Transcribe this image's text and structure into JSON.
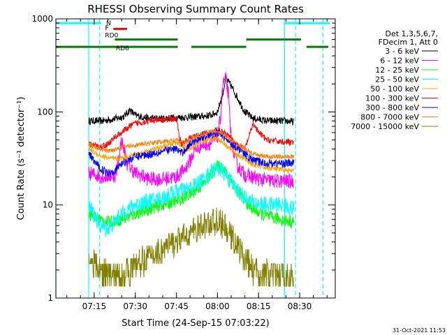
{
  "chart_data": {
    "type": "line",
    "title": "RHESSI Observing Summary Count Rates",
    "xlabel": "Start Time (24-Sep-15 07:03:22)",
    "ylabel": "Count Rate (s⁻¹ detector⁻¹)",
    "yscale": "log",
    "ylim": [
      1,
      1000
    ],
    "xlim_minutes": [
      -2,
      100
    ],
    "x_ticks": [
      {
        "minute": 12,
        "label": "07:15"
      },
      {
        "minute": 27,
        "label": "07:30"
      },
      {
        "minute": 42,
        "label": "07:45"
      },
      {
        "minute": 57,
        "label": "08:00"
      },
      {
        "minute": 72,
        "label": "08:15"
      },
      {
        "minute": 87,
        "label": "08:30"
      }
    ],
    "y_ticks": [
      {
        "value": 1,
        "label": "1"
      },
      {
        "value": 10,
        "label": "10"
      },
      {
        "value": 100,
        "label": "100"
      },
      {
        "value": 1000,
        "label": "1000"
      }
    ],
    "legend_header": [
      "Det 1,3,5,6,7,",
      "FDecim 1, Att 0"
    ],
    "series": [
      {
        "name": "3 - 6 keV",
        "color": "#000000",
        "points": [
          [
            10,
            80
          ],
          [
            15,
            80
          ],
          [
            20,
            85
          ],
          [
            23,
            90
          ],
          [
            25,
            105
          ],
          [
            27,
            92
          ],
          [
            32,
            85
          ],
          [
            37,
            85
          ],
          [
            42,
            87
          ],
          [
            47,
            88
          ],
          [
            52,
            90
          ],
          [
            55,
            93
          ],
          [
            57,
            100
          ],
          [
            59,
            160
          ],
          [
            60,
            230
          ],
          [
            62,
            190
          ],
          [
            65,
            130
          ],
          [
            67,
            100
          ],
          [
            70,
            85
          ],
          [
            75,
            80
          ],
          [
            82,
            80
          ],
          [
            85,
            78
          ]
        ]
      },
      {
        "name": "6 - 12 keV",
        "color": "#ff00ff",
        "points": [
          [
            10,
            22
          ],
          [
            15,
            20
          ],
          [
            20,
            21
          ],
          [
            22,
            50
          ],
          [
            24,
            28
          ],
          [
            27,
            22
          ],
          [
            32,
            19
          ],
          [
            37,
            19
          ],
          [
            42,
            20
          ],
          [
            45,
            24
          ],
          [
            47,
            30
          ],
          [
            49,
            40
          ],
          [
            52,
            45
          ],
          [
            55,
            46
          ],
          [
            57,
            55
          ],
          [
            58,
            80
          ],
          [
            59,
            200
          ],
          [
            60,
            230
          ],
          [
            61,
            150
          ],
          [
            62,
            50
          ],
          [
            64,
            27
          ],
          [
            67,
            21
          ],
          [
            72,
            19
          ],
          [
            78,
            18
          ],
          [
            85,
            18
          ]
        ]
      },
      {
        "name": "12 - 25 keV",
        "color": "#00ff00",
        "points": [
          [
            10,
            8
          ],
          [
            14,
            7
          ],
          [
            17,
            6.5
          ],
          [
            22,
            7
          ],
          [
            27,
            8
          ],
          [
            32,
            9
          ],
          [
            37,
            10
          ],
          [
            42,
            11
          ],
          [
            47,
            13
          ],
          [
            52,
            17
          ],
          [
            55,
            22
          ],
          [
            57,
            26
          ],
          [
            59,
            25
          ],
          [
            61,
            20
          ],
          [
            64,
            15
          ],
          [
            67,
            11
          ],
          [
            70,
            9
          ],
          [
            75,
            7.5
          ],
          [
            80,
            7
          ],
          [
            85,
            6.5
          ]
        ]
      },
      {
        "name": "25 - 50 keV",
        "color": "#00ffff",
        "points": [
          [
            10,
            10
          ],
          [
            14,
            6
          ],
          [
            17,
            5.5
          ],
          [
            22,
            8
          ],
          [
            27,
            10
          ],
          [
            32,
            11
          ],
          [
            37,
            12
          ],
          [
            42,
            14
          ],
          [
            47,
            15
          ],
          [
            52,
            19
          ],
          [
            55,
            23
          ],
          [
            57,
            25
          ],
          [
            59,
            23
          ],
          [
            61,
            19
          ],
          [
            64,
            15
          ],
          [
            67,
            12
          ],
          [
            70,
            10.5
          ],
          [
            75,
            10
          ],
          [
            80,
            10
          ],
          [
            85,
            9
          ]
        ]
      },
      {
        "name": "50 - 100 keV",
        "color": "#ffa500",
        "points": [
          [
            10,
            40
          ],
          [
            14,
            34
          ],
          [
            17,
            32
          ],
          [
            20,
            31
          ],
          [
            22,
            32
          ],
          [
            27,
            35
          ],
          [
            32,
            38
          ],
          [
            37,
            42
          ],
          [
            40,
            45
          ],
          [
            42,
            47
          ],
          [
            44,
            44
          ],
          [
            46,
            40
          ],
          [
            48,
            42
          ],
          [
            52,
            48
          ],
          [
            55,
            52
          ],
          [
            57,
            52
          ],
          [
            59,
            47
          ],
          [
            61,
            42
          ],
          [
            64,
            35
          ],
          [
            67,
            31
          ],
          [
            70,
            27
          ],
          [
            75,
            25
          ],
          [
            80,
            24
          ],
          [
            85,
            23
          ]
        ]
      },
      {
        "name": "100 - 300 keV",
        "color": "#ff0000",
        "points": [
          [
            10,
            45
          ],
          [
            14,
            42
          ],
          [
            17,
            45
          ],
          [
            20,
            55
          ],
          [
            22,
            60
          ],
          [
            25,
            70
          ],
          [
            27,
            75
          ],
          [
            32,
            80
          ],
          [
            37,
            82
          ],
          [
            42,
            85
          ],
          [
            43,
            55
          ],
          [
            44,
            45
          ],
          [
            45,
            48
          ],
          [
            47,
            52
          ],
          [
            52,
            58
          ],
          [
            55,
            60
          ],
          [
            57,
            65
          ],
          [
            59,
            60
          ],
          [
            61,
            55
          ],
          [
            64,
            45
          ],
          [
            67,
            40
          ],
          [
            69,
            60
          ],
          [
            70,
            75
          ],
          [
            72,
            60
          ],
          [
            75,
            50
          ],
          [
            80,
            48
          ],
          [
            85,
            47
          ]
        ]
      },
      {
        "name": "300 - 800 keV",
        "color": "#0000ff",
        "points": [
          [
            10,
            35
          ],
          [
            14,
            25
          ],
          [
            17,
            22
          ],
          [
            20,
            24
          ],
          [
            22,
            28
          ],
          [
            27,
            33
          ],
          [
            32,
            35
          ],
          [
            37,
            38
          ],
          [
            42,
            40
          ],
          [
            44,
            36
          ],
          [
            46,
            42
          ],
          [
            48,
            48
          ],
          [
            52,
            55
          ],
          [
            55,
            58
          ],
          [
            57,
            60
          ],
          [
            59,
            55
          ],
          [
            61,
            48
          ],
          [
            64,
            42
          ],
          [
            67,
            35
          ],
          [
            70,
            30
          ],
          [
            75,
            28
          ],
          [
            80,
            28
          ],
          [
            85,
            28
          ]
        ]
      },
      {
        "name": "800 - 7000 keV",
        "color": "#ff7f00",
        "points": [
          [
            10,
            45
          ],
          [
            14,
            40
          ],
          [
            17,
            38
          ],
          [
            20,
            40
          ],
          [
            22,
            42
          ],
          [
            27,
            44
          ],
          [
            32,
            46
          ],
          [
            37,
            48
          ],
          [
            42,
            50
          ],
          [
            44,
            46
          ],
          [
            46,
            48
          ],
          [
            48,
            52
          ],
          [
            52,
            58
          ],
          [
            55,
            62
          ],
          [
            57,
            62
          ],
          [
            59,
            58
          ],
          [
            61,
            52
          ],
          [
            64,
            45
          ],
          [
            67,
            40
          ],
          [
            70,
            35
          ],
          [
            75,
            33
          ],
          [
            80,
            33
          ],
          [
            85,
            33
          ]
        ]
      },
      {
        "name": "7000 - 15000 keV",
        "color": "#808000",
        "points": [
          [
            10,
            2.8
          ],
          [
            14,
            2
          ],
          [
            17,
            1.8
          ],
          [
            22,
            1.8
          ],
          [
            25,
            2
          ],
          [
            28,
            2.3
          ],
          [
            32,
            2.8
          ],
          [
            37,
            3.3
          ],
          [
            42,
            4
          ],
          [
            47,
            5
          ],
          [
            52,
            6
          ],
          [
            55,
            6.5
          ],
          [
            57,
            6.8
          ],
          [
            59,
            6
          ],
          [
            61,
            5
          ],
          [
            64,
            3.8
          ],
          [
            67,
            2.6
          ],
          [
            70,
            2
          ],
          [
            75,
            1.8
          ],
          [
            80,
            1.7
          ],
          [
            85,
            1.6
          ]
        ]
      }
    ],
    "vlines": [
      {
        "minute": -2,
        "color": "#00ffff",
        "style": "solid"
      },
      {
        "minute": 10,
        "color": "#00ffff",
        "style": "solid"
      },
      {
        "minute": 14,
        "color": "#00ffff",
        "style": "dashed"
      },
      {
        "minute": 81.5,
        "color": "#00ffff",
        "style": "solid"
      },
      {
        "minute": 85.5,
        "color": "#00ffff",
        "style": "dashed"
      },
      {
        "minute": 95.5,
        "color": "#00ffff",
        "style": "dashed"
      }
    ],
    "flag_bars": [
      {
        "label": "N",
        "color": "#00ffff",
        "start": -2,
        "end": 14.5,
        "level": 900
      },
      {
        "label": "",
        "color": "#00ffff",
        "start": 81.5,
        "end": 98,
        "level": 900
      },
      {
        "label": "F",
        "color": "#ff0000",
        "start": 19,
        "end": 24,
        "level": 780
      },
      {
        "label": "RD0",
        "color": "#008000",
        "start": 19.5,
        "end": 42.5,
        "level": 600
      },
      {
        "label": "",
        "color": "#008000",
        "start": 67.5,
        "end": 87.5,
        "level": 600
      },
      {
        "label": "RD6",
        "color": "#008000",
        "start": -2,
        "end": 42.5,
        "level": 500
      },
      {
        "label": "",
        "color": "#008000",
        "start": 47.5,
        "end": 67.5,
        "level": 500
      },
      {
        "label": "",
        "color": "#008000",
        "start": 89.5,
        "end": 97.5,
        "level": 500
      }
    ],
    "timestamp": "31-Oct-2021 11:53"
  }
}
